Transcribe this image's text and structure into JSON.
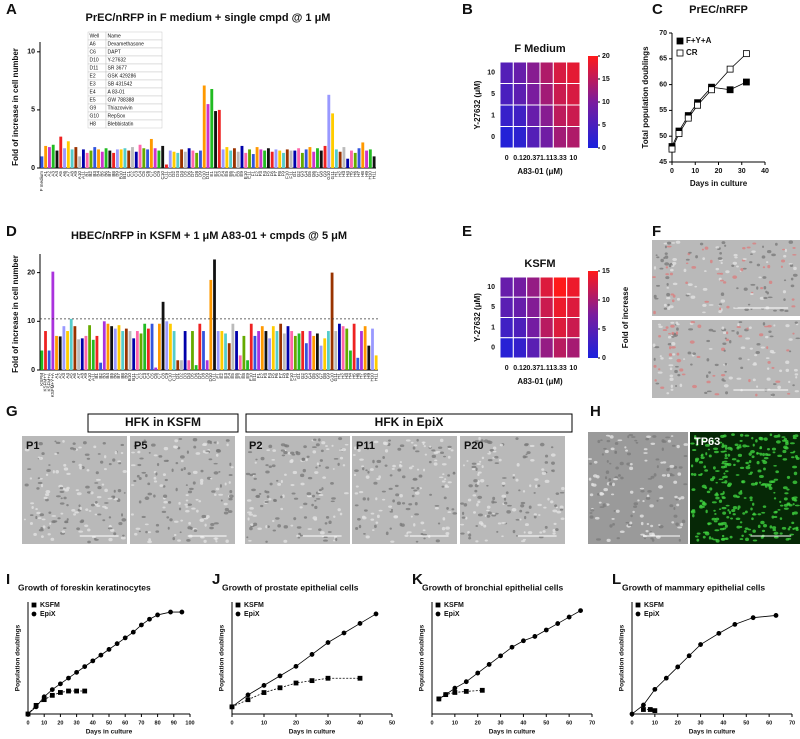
{
  "chart_data": [
    {
      "panel": "A",
      "type": "bar",
      "title": "PrEC/nRFP in F medium + single cmpd @ 1 μM",
      "y_label": "Fold of increase in cell number",
      "categories": [
        "F medium",
        "A1",
        "A2",
        "A3",
        "A4",
        "A5",
        "A6",
        "A7",
        "A8",
        "A9",
        "A10",
        "A11",
        "B1",
        "B2",
        "B3",
        "B4",
        "B5",
        "B6",
        "B7",
        "B8",
        "B9",
        "B10",
        "B11",
        "C1",
        "C2",
        "C3",
        "C4",
        "C5",
        "C6",
        "C7",
        "C8",
        "C9",
        "C10",
        "C11",
        "D1",
        "D2",
        "D3",
        "D4",
        "D5",
        "D6",
        "D7",
        "D8",
        "D9",
        "D10",
        "D11",
        "E1",
        "E2",
        "E3",
        "E4",
        "E5",
        "E6",
        "E7",
        "E8",
        "E9",
        "E10",
        "E11",
        "F1",
        "F2",
        "F3",
        "F4",
        "F5",
        "F6",
        "F7",
        "F8",
        "F9",
        "F10",
        "F11",
        "G1",
        "G2",
        "G3",
        "G4",
        "G5",
        "G6",
        "G7",
        "G8",
        "G9",
        "G10",
        "G11",
        "H1",
        "H2",
        "H3",
        "H4",
        "H5",
        "H6",
        "H7",
        "H8",
        "H9",
        "H10",
        "H11"
      ],
      "values": [
        1.0,
        1.9,
        1.8,
        2.0,
        1.5,
        2.7,
        1.7,
        2.3,
        1.6,
        1.8,
        1.0,
        1.6,
        1.3,
        1.5,
        1.8,
        1.6,
        1.4,
        1.7,
        1.5,
        1.3,
        1.6,
        1.6,
        1.7,
        1.5,
        1.8,
        1.4,
        2.0,
        1.7,
        1.6,
        2.5,
        1.7,
        1.5,
        1.9,
        0.3,
        1.5,
        1.4,
        1.3,
        1.6,
        1.4,
        1.7,
        1.5,
        1.3,
        1.5,
        7.1,
        5.5,
        6.8,
        4.9,
        5.0,
        1.6,
        1.8,
        1.5,
        1.7,
        1.4,
        1.9,
        1.3,
        1.6,
        1.2,
        1.8,
        1.6,
        1.5,
        1.7,
        1.4,
        1.6,
        1.5,
        1.3,
        1.6,
        1.5,
        1.5,
        1.7,
        1.3,
        1.6,
        1.8,
        1.4,
        1.7,
        1.5,
        1.9,
        6.3,
        4.7,
        1.6,
        1.4,
        1.8,
        0.8,
        1.5,
        1.3,
        1.7,
        2.2,
        1.5,
        1.6,
        1.0
      ],
      "colors": [
        "#3355dd",
        "#ff9900",
        "#cc33cc",
        "#22bb22",
        "#111111",
        "#ee2222",
        "#9999ff",
        "#ffcc00",
        "#55cccc",
        "#993300",
        "#bbbbbb",
        "#0000aa",
        "#ff66aa",
        "#66aa00"
      ],
      "ylim": [
        0,
        10.5
      ],
      "yticks": [
        0,
        5,
        10
      ],
      "legend_table": {
        "header": [
          "Well",
          "Name"
        ],
        "rows": [
          [
            "A6",
            "Dexamethasone"
          ],
          [
            "C6",
            "DAPT"
          ],
          [
            "D10",
            "Y-27632"
          ],
          [
            "D11",
            "SR 3677"
          ],
          [
            "E2",
            "GSK 429286"
          ],
          [
            "E3",
            "SB 431542"
          ],
          [
            "E4",
            "A 83-01"
          ],
          [
            "E5",
            "GW 788388"
          ],
          [
            "G9",
            "Thiazovivin"
          ],
          [
            "G10",
            "RepSox"
          ],
          [
            "H8",
            "Blebbistatin"
          ]
        ]
      }
    },
    {
      "panel": "B",
      "type": "heatmap",
      "title": "F Medium",
      "x_label": "A83-01 (μM)",
      "y_label": "Y-27632 (μM)",
      "x_categories": [
        "0",
        "0.12",
        "0.37",
        "1.11",
        "3.33",
        "10"
      ],
      "y_categories": [
        "10",
        "5",
        "1",
        "0"
      ],
      "values": [
        [
          6,
          8,
          11,
          14,
          17,
          18
        ],
        [
          5,
          7,
          10,
          13,
          16,
          17
        ],
        [
          3,
          4,
          8,
          11,
          15,
          16
        ],
        [
          1,
          2,
          6,
          9,
          13,
          14
        ]
      ],
      "colormap": [
        "#1a22dd",
        "#7a1c9e",
        "#ff1a1a"
      ],
      "zlim": [
        0,
        20
      ],
      "zticks": [
        0,
        5,
        10,
        15,
        20
      ]
    },
    {
      "panel": "C",
      "type": "line",
      "title": "PrEC/nRFP",
      "x_label": "Days in culture",
      "y_label": "Total population doublings",
      "xlim": [
        0,
        40
      ],
      "xticks": [
        0,
        10,
        20,
        30,
        40
      ],
      "ylim": [
        45,
        70
      ],
      "yticks": [
        45,
        50,
        55,
        60,
        65,
        70
      ],
      "legend": "top-left",
      "series": [
        {
          "name": "F+Y+A",
          "color": "#000000",
          "marker": "square",
          "filled": true,
          "dashed": false,
          "x": [
            0,
            3,
            7,
            11,
            17,
            25,
            32
          ],
          "values": [
            48,
            51,
            54,
            56.5,
            59.5,
            59,
            60.5
          ]
        },
        {
          "name": "CR",
          "color": "#000000",
          "marker": "square",
          "filled": false,
          "dashed": false,
          "x": [
            0,
            3,
            7,
            11,
            17,
            25,
            32
          ],
          "values": [
            47.5,
            50.5,
            53.5,
            56,
            59,
            63,
            66
          ]
        }
      ]
    },
    {
      "panel": "D",
      "type": "bar",
      "title": "HBEC/nRFP in KSFM + 1 μM A83-01 + cmpds @ 5 μM",
      "y_label": "Fold of increase in cell number",
      "categories": [
        "KSFM",
        "KSFM+Y",
        "KSFM+A",
        "KSFM+Y+A",
        "A1",
        "A2",
        "A3",
        "A4",
        "A5",
        "A6",
        "A7",
        "A8",
        "A9",
        "A10",
        "A11",
        "B1",
        "B2",
        "B3",
        "B4",
        "B5",
        "B6",
        "B7",
        "B8",
        "B9",
        "B10",
        "B11",
        "C1",
        "C2",
        "C3",
        "C4",
        "C5",
        "C6",
        "C7",
        "C8",
        "C9",
        "C10",
        "C11",
        "D1",
        "D2",
        "D3",
        "D4",
        "D5",
        "D6",
        "D7",
        "D8",
        "D9",
        "D10",
        "D11",
        "E1",
        "E2",
        "E3",
        "E4",
        "E5",
        "E6",
        "E7",
        "E8",
        "E9",
        "E10",
        "E11",
        "F1",
        "F2",
        "F3",
        "F4",
        "F5",
        "F6",
        "F7",
        "F8",
        "F9",
        "F10",
        "F11",
        "G1",
        "G2",
        "G3",
        "G4",
        "G5",
        "G6",
        "G7",
        "G8",
        "G9",
        "G10",
        "G11",
        "H1",
        "H2",
        "H3",
        "H4",
        "H5",
        "H6",
        "H7",
        "H8",
        "H9",
        "H10",
        "H11"
      ],
      "values": [
        4.0,
        8.0,
        4.0,
        20.2,
        7.0,
        6.9,
        9.0,
        8.0,
        10.5,
        9.0,
        6.3,
        6.5,
        7.0,
        9.2,
        6.2,
        7.0,
        1.5,
        10.0,
        9.5,
        9.0,
        8.5,
        9.2,
        8.0,
        8.5,
        8.0,
        6.5,
        8.0,
        7.5,
        9.5,
        8.5,
        9.5,
        0.5,
        9.5,
        14.0,
        10.0,
        9.5,
        8.0,
        2.0,
        2.0,
        8.0,
        2.0,
        8.0,
        1.0,
        9.5,
        8.0,
        2.0,
        18.5,
        22.7,
        8.0,
        8.0,
        7.5,
        5.5,
        9.5,
        8.0,
        3.0,
        7.0,
        2.0,
        9.5,
        7.0,
        8.0,
        9.0,
        8.0,
        6.5,
        9.0,
        8.0,
        9.5,
        7.5,
        9.0,
        8.0,
        7.0,
        7.5,
        8.0,
        5.5,
        8.0,
        7.0,
        7.5,
        5.0,
        6.5,
        8.0,
        20.0,
        8.0,
        9.5,
        9.0,
        8.5,
        4.0,
        9.5,
        2.5,
        8.0,
        9.0,
        5.0,
        8.5,
        3.0
      ],
      "colors": [
        "#22bb22",
        "#ee2222",
        "#3355dd",
        "#aa33dd",
        "#ff9900",
        "#111111",
        "#9999ff",
        "#ffcc00",
        "#55cccc",
        "#993300",
        "#bbbbbb",
        "#0000aa",
        "#ff66aa",
        "#66aa00"
      ],
      "ylim": [
        0,
        23
      ],
      "yticks": [
        0,
        10,
        20
      ],
      "reference_line": 10.5
    },
    {
      "panel": "E",
      "type": "heatmap",
      "title": "KSFM",
      "x_label": "A83-01 (μM)",
      "y_label": "Y-27632 (μM)",
      "z_label": "Fold of increase",
      "x_categories": [
        "0",
        "0.12",
        "0.37",
        "1.11",
        "3.33",
        "10"
      ],
      "y_categories": [
        "10",
        "5",
        "1",
        "0"
      ],
      "values": [
        [
          6,
          7,
          9,
          13,
          15,
          14
        ],
        [
          5,
          6,
          8,
          12,
          14,
          13
        ],
        [
          3,
          4,
          7,
          11,
          13,
          12
        ],
        [
          1,
          2,
          5,
          9,
          11,
          10
        ]
      ],
      "colormap": [
        "#1a22dd",
        "#7a1c9e",
        "#ff1a1a"
      ],
      "zlim": [
        0,
        15
      ],
      "zticks": [
        0,
        5,
        10,
        15
      ]
    },
    {
      "panel": "I",
      "type": "line",
      "title": "Growth of foreskin keratinocytes",
      "x_label": "Days in culture",
      "y_label": "Population doublings",
      "xlim": [
        0,
        100
      ],
      "xticks": [
        0,
        10,
        20,
        30,
        40,
        50,
        60,
        70,
        80,
        90,
        100
      ],
      "ylim": [
        0,
        78
      ],
      "legend": "top-left",
      "series": [
        {
          "name": "KSFM",
          "color": "#000000",
          "marker": "square",
          "filled": true,
          "dashed": true,
          "x": [
            0,
            5,
            10,
            15,
            20,
            25,
            30,
            35
          ],
          "values": [
            0,
            6,
            10,
            13,
            15,
            16,
            16,
            16
          ]
        },
        {
          "name": "EpiX",
          "color": "#000000",
          "marker": "circle",
          "filled": true,
          "dashed": false,
          "x": [
            0,
            5,
            10,
            15,
            20,
            25,
            30,
            35,
            40,
            45,
            50,
            55,
            60,
            65,
            70,
            75,
            80,
            88,
            95
          ],
          "values": [
            0,
            5,
            12,
            17,
            21,
            25,
            29,
            33,
            37,
            41,
            45,
            49,
            53,
            57,
            62,
            66,
            69,
            71,
            71
          ]
        }
      ]
    },
    {
      "panel": "J",
      "type": "line",
      "title": "Growth of prostate epithelial cells",
      "x_label": "Days in culture",
      "y_label": "Population doublings",
      "xlim": [
        0,
        50
      ],
      "xticks": [
        0,
        10,
        20,
        30,
        40,
        50
      ],
      "ylim": [
        0,
        47
      ],
      "legend": "top-left",
      "series": [
        {
          "name": "KSFM",
          "color": "#000000",
          "marker": "square",
          "filled": true,
          "dashed": true,
          "x": [
            0,
            5,
            10,
            15,
            20,
            25,
            30,
            40
          ],
          "values": [
            3,
            6,
            9,
            11,
            13,
            14,
            15,
            15
          ]
        },
        {
          "name": "EpiX",
          "color": "#000000",
          "marker": "circle",
          "filled": true,
          "dashed": false,
          "x": [
            0,
            5,
            10,
            15,
            20,
            25,
            30,
            35,
            40,
            45
          ],
          "values": [
            3,
            8,
            12,
            16,
            20,
            25,
            30,
            34,
            38,
            42
          ]
        }
      ]
    },
    {
      "panel": "K",
      "type": "line",
      "title": "Growth of bronchial epithelial cells",
      "x_label": "Days in culture",
      "y_label": "Population doublings",
      "xlim": [
        0,
        70
      ],
      "xticks": [
        0,
        10,
        20,
        30,
        40,
        50,
        60,
        70
      ],
      "ylim": [
        0,
        52
      ],
      "legend": "top-left",
      "series": [
        {
          "name": "KSFM",
          "color": "#000000",
          "marker": "square",
          "filled": true,
          "dashed": true,
          "x": [
            3,
            6,
            10,
            15,
            22
          ],
          "values": [
            7,
            9,
            10,
            10.5,
            11
          ]
        },
        {
          "name": "EpiX",
          "color": "#000000",
          "marker": "circle",
          "filled": true,
          "dashed": false,
          "x": [
            3,
            6,
            10,
            15,
            20,
            25,
            30,
            35,
            40,
            45,
            50,
            55,
            60,
            65
          ],
          "values": [
            7,
            9,
            12,
            15,
            19,
            23,
            27,
            31,
            34,
            36,
            39,
            42,
            45,
            48
          ]
        }
      ]
    },
    {
      "panel": "L",
      "type": "line",
      "title": "Growth of mammary epithelial cells",
      "x_label": "Days in culture",
      "y_label": "Population doublings",
      "xlim": [
        0,
        70
      ],
      "xticks": [
        0,
        10,
        20,
        30,
        40,
        50,
        60,
        70
      ],
      "ylim": [
        0,
        50
      ],
      "legend": "top-left",
      "series": [
        {
          "name": "KSFM",
          "color": "#000000",
          "marker": "square",
          "filled": true,
          "dashed": true,
          "x": [
            5,
            8,
            10
          ],
          "values": [
            2,
            2,
            1.5
          ]
        },
        {
          "name": "EpiX",
          "color": "#000000",
          "marker": "circle",
          "filled": true,
          "dashed": false,
          "x": [
            0,
            5,
            10,
            15,
            20,
            25,
            30,
            38,
            45,
            53,
            63
          ],
          "values": [
            0,
            4,
            11,
            16,
            21,
            26,
            31,
            36,
            40,
            43,
            44
          ]
        }
      ]
    }
  ],
  "image_panels": [
    {
      "panel": "F"
    },
    {
      "panel": "G",
      "groups": [
        {
          "title": "HFK in KSFM",
          "images": [
            "P1",
            "P5"
          ]
        },
        {
          "title": "HFK in EpiX",
          "images": [
            "P2",
            "P11",
            "P20"
          ]
        }
      ]
    },
    {
      "panel": "H",
      "fluorescence_label": "TP63"
    }
  ]
}
